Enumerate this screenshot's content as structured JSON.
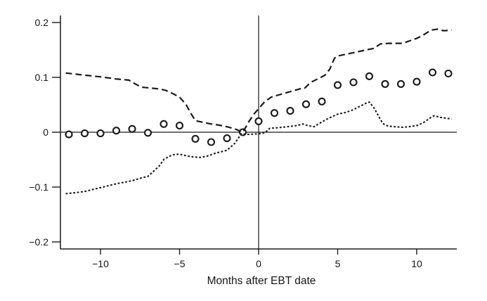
{
  "chart_data": {
    "type": "line",
    "title": "",
    "xlabel": "Months after EBT date",
    "ylabel": "",
    "xlim": [
      -12.6,
      12.6
    ],
    "ylim": [
      -0.22,
      0.215
    ],
    "x_ticks": [
      -10,
      -5,
      0,
      5,
      10
    ],
    "y_ticks": [
      -0.2,
      -0.1,
      0,
      0.1,
      0.2
    ],
    "grid": "off",
    "legend": "none",
    "reference_lines": {
      "vertical_x": 0,
      "horizontal_y": 0
    },
    "colors": {
      "ink": "#1a1a1a",
      "background": "#ffffff"
    },
    "series": [
      {
        "name": "point-estimate",
        "type": "scatter",
        "marker": "open-circle",
        "x": [
          -12,
          -11,
          -10,
          -9,
          -8,
          -7,
          -6,
          -5,
          -4,
          -3,
          -2,
          -1,
          0,
          1,
          2,
          3,
          4,
          5,
          6,
          7,
          8,
          9,
          10,
          11,
          12
        ],
        "values": [
          -0.004,
          -0.002,
          -0.002,
          0.003,
          0.006,
          -0.001,
          0.015,
          0.012,
          -0.012,
          -0.018,
          -0.011,
          0.0,
          0.02,
          0.035,
          0.039,
          0.051,
          0.056,
          0.086,
          0.091,
          0.102,
          0.088,
          0.088,
          0.092,
          0.109,
          0.107
        ]
      },
      {
        "name": "upper-confidence-band",
        "type": "line",
        "style": "dashed",
        "points": [
          [
            -12.2,
            0.108
          ],
          [
            -11,
            0.104
          ],
          [
            -10,
            0.101
          ],
          [
            -9,
            0.097
          ],
          [
            -8.2,
            0.095
          ],
          [
            -7.8,
            0.088
          ],
          [
            -7.4,
            0.082
          ],
          [
            -7,
            0.081
          ],
          [
            -6.3,
            0.079
          ],
          [
            -5.9,
            0.0765
          ],
          [
            -5.4,
            0.07
          ],
          [
            -5,
            0.064
          ],
          [
            -4.6,
            0.051
          ],
          [
            -4.3,
            0.035
          ],
          [
            -4,
            0.021
          ],
          [
            -3.5,
            0.018
          ],
          [
            -3,
            0.015
          ],
          [
            -2.5,
            0.013
          ],
          [
            -2,
            0.01
          ],
          [
            -1.5,
            0.006
          ],
          [
            -1,
            0.0
          ],
          [
            -0.6,
            0.02
          ],
          [
            -0.3,
            0.033
          ],
          [
            0,
            0.043
          ],
          [
            0.4,
            0.056
          ],
          [
            0.8,
            0.064
          ],
          [
            1.5,
            0.07
          ],
          [
            2,
            0.074
          ],
          [
            2.6,
            0.079
          ],
          [
            2.9,
            0.08
          ],
          [
            3.3,
            0.091
          ],
          [
            3.8,
            0.098
          ],
          [
            4.2,
            0.104
          ],
          [
            4.5,
            0.115
          ],
          [
            4.8,
            0.135
          ],
          [
            5,
            0.139
          ],
          [
            5.5,
            0.142
          ],
          [
            6,
            0.145
          ],
          [
            6.8,
            0.15
          ],
          [
            7.3,
            0.153
          ],
          [
            7.7,
            0.161
          ],
          [
            8.2,
            0.162
          ],
          [
            9.1,
            0.162
          ],
          [
            9.5,
            0.166
          ],
          [
            10,
            0.171
          ],
          [
            10.4,
            0.177
          ],
          [
            10.9,
            0.186
          ],
          [
            11.3,
            0.188
          ],
          [
            11.7,
            0.185
          ],
          [
            12.2,
            0.186
          ]
        ]
      },
      {
        "name": "lower-confidence-band",
        "type": "line",
        "style": "dotted",
        "points": [
          [
            -12.2,
            -0.112
          ],
          [
            -11.5,
            -0.11
          ],
          [
            -11,
            -0.108
          ],
          [
            -10,
            -0.101
          ],
          [
            -9,
            -0.094
          ],
          [
            -8,
            -0.0885
          ],
          [
            -7.5,
            -0.084
          ],
          [
            -7,
            -0.0805
          ],
          [
            -6.6,
            -0.07
          ],
          [
            -6.3,
            -0.062
          ],
          [
            -6,
            -0.05
          ],
          [
            -5.7,
            -0.0445
          ],
          [
            -5.4,
            -0.041
          ],
          [
            -5,
            -0.04
          ],
          [
            -4.7,
            -0.042
          ],
          [
            -4.3,
            -0.0445
          ],
          [
            -3.7,
            -0.046
          ],
          [
            -3.3,
            -0.044
          ],
          [
            -2.7,
            -0.038
          ],
          [
            -2,
            -0.033
          ],
          [
            -1.5,
            -0.02
          ],
          [
            -1.1,
            -0.003
          ],
          [
            -0.6,
            -0.004
          ],
          [
            0,
            -0.003
          ],
          [
            0.4,
            -0.001
          ],
          [
            0.7,
            0.007
          ],
          [
            1.5,
            0.009
          ],
          [
            2.4,
            0.012
          ],
          [
            2.8,
            0.015
          ],
          [
            3.1,
            0.012
          ],
          [
            3.5,
            0.01
          ],
          [
            3.9,
            0.017
          ],
          [
            4.4,
            0.025
          ],
          [
            5,
            0.033
          ],
          [
            5.5,
            0.036
          ],
          [
            5.9,
            0.04
          ],
          [
            6.4,
            0.047
          ],
          [
            6.8,
            0.053
          ],
          [
            7,
            0.055
          ],
          [
            7.3,
            0.044
          ],
          [
            7.5,
            0.034
          ],
          [
            7.7,
            0.023
          ],
          [
            7.9,
            0.015
          ],
          [
            8.2,
            0.011
          ],
          [
            8.6,
            0.01
          ],
          [
            9.1,
            0.009
          ],
          [
            9.5,
            0.01
          ],
          [
            10,
            0.012
          ],
          [
            10.4,
            0.017
          ],
          [
            10.9,
            0.027
          ],
          [
            11.1,
            0.03
          ],
          [
            11.5,
            0.027
          ],
          [
            12,
            0.025
          ],
          [
            12.2,
            0.024
          ]
        ]
      }
    ]
  }
}
